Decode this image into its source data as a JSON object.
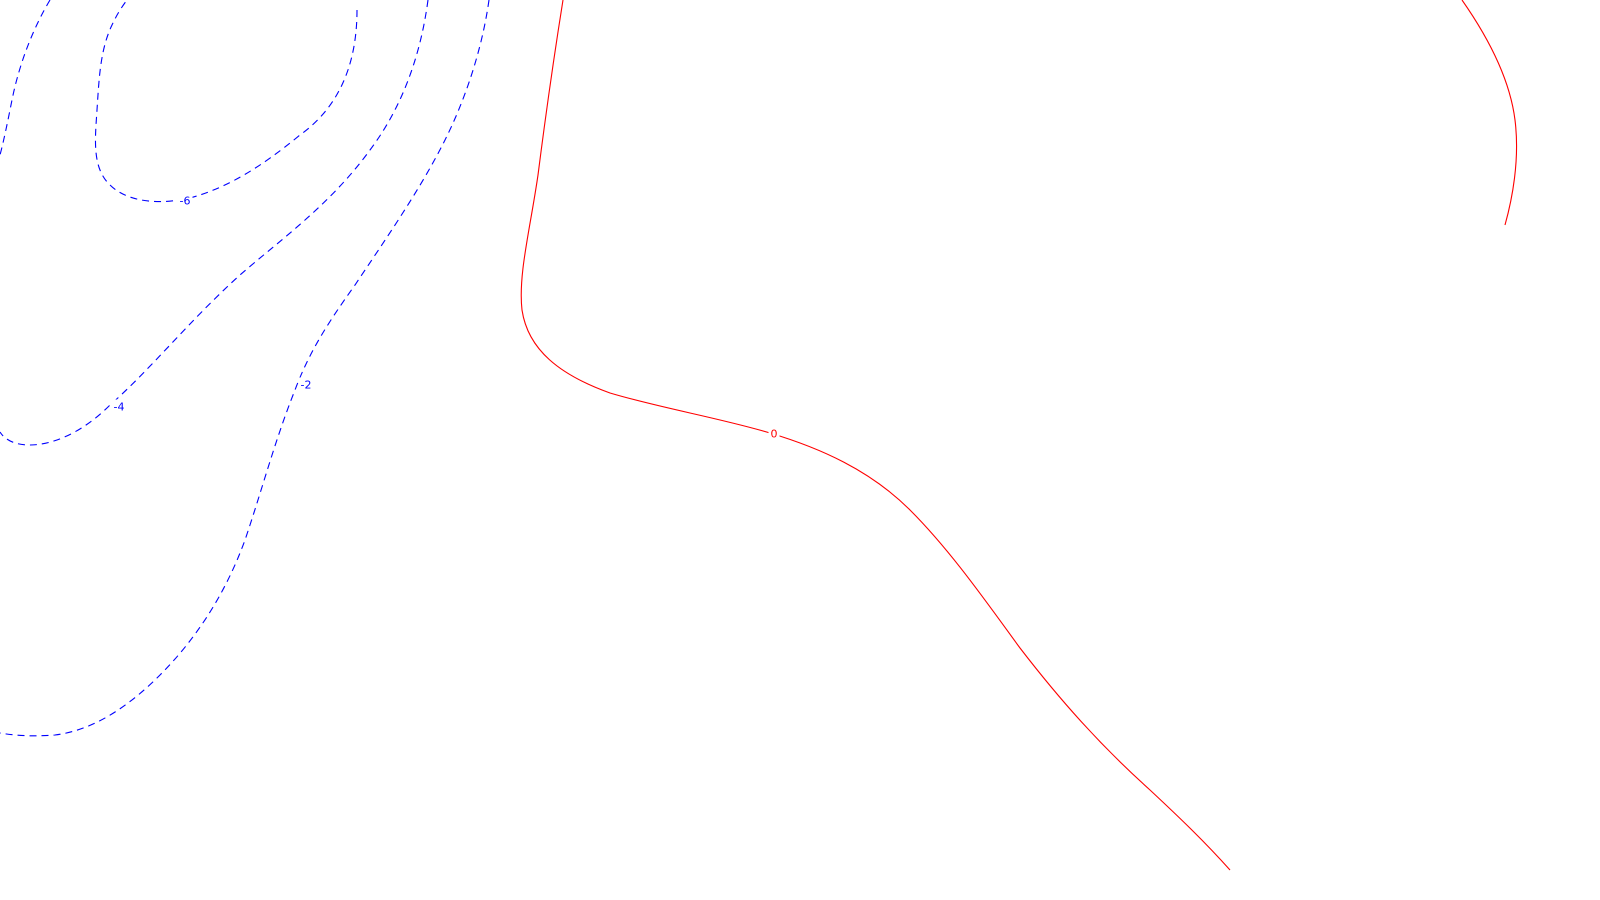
{
  "chart_data": {
    "type": "contour",
    "title": "",
    "xlabel": "",
    "ylabel": "",
    "grid": false,
    "legend": "none",
    "colors": {
      "negative": "#0000ff",
      "zero": "#ff0000"
    },
    "levels": [
      {
        "value": -6,
        "label": "-6",
        "color": "#0000ff",
        "style": "dashed"
      },
      {
        "value": -4,
        "label": "-4",
        "color": "#0000ff",
        "style": "dashed"
      },
      {
        "value": -2,
        "label": "-2",
        "color": "#0000ff",
        "style": "dashed"
      },
      {
        "value": 0,
        "label": "0",
        "color": "#ff0000",
        "style": "solid"
      }
    ]
  }
}
